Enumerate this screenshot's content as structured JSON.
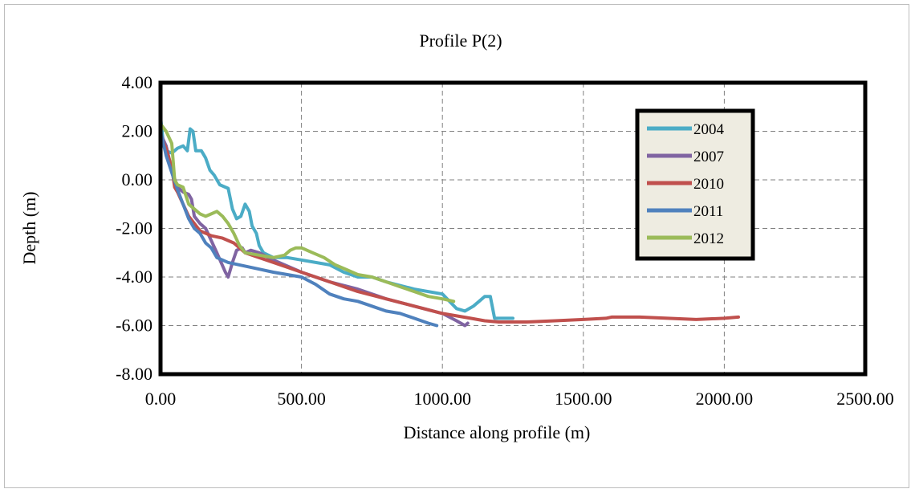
{
  "chart_data": {
    "type": "line",
    "title": "Profile P(2)",
    "xlabel": "Distance along profile (m)",
    "ylabel": "Depth (m)",
    "xlim": [
      0,
      2500
    ],
    "ylim": [
      -8,
      4
    ],
    "x_ticks": [
      0,
      500,
      1000,
      1500,
      2000,
      2500
    ],
    "y_ticks": [
      4,
      2,
      0,
      -2,
      -4,
      -6,
      -8
    ],
    "x_tick_labels": [
      "0.00",
      "500.00",
      "1000.00",
      "1500.00",
      "2000.00",
      "2500.00"
    ],
    "y_tick_labels": [
      "4.00",
      "2.00",
      "0.00",
      "-2.00",
      "-4.00",
      "-6.00",
      "-8.00"
    ],
    "grid": true,
    "legend_position": "top-right",
    "series": [
      {
        "name": "2004",
        "color": "#4bacc6",
        "points": [
          [
            0,
            2.6
          ],
          [
            10,
            1.5
          ],
          [
            20,
            1.2
          ],
          [
            40,
            1.1
          ],
          [
            60,
            1.3
          ],
          [
            80,
            1.4
          ],
          [
            95,
            1.2
          ],
          [
            105,
            2.1
          ],
          [
            115,
            2.0
          ],
          [
            125,
            1.2
          ],
          [
            145,
            1.2
          ],
          [
            160,
            0.9
          ],
          [
            175,
            0.4
          ],
          [
            190,
            0.2
          ],
          [
            210,
            -0.2
          ],
          [
            230,
            -0.3
          ],
          [
            240,
            -0.35
          ],
          [
            255,
            -1.2
          ],
          [
            270,
            -1.6
          ],
          [
            285,
            -1.5
          ],
          [
            300,
            -1.0
          ],
          [
            315,
            -1.3
          ],
          [
            325,
            -1.9
          ],
          [
            340,
            -2.2
          ],
          [
            350,
            -2.7
          ],
          [
            365,
            -3.0
          ],
          [
            400,
            -3.2
          ],
          [
            450,
            -3.2
          ],
          [
            500,
            -3.3
          ],
          [
            600,
            -3.5
          ],
          [
            650,
            -3.8
          ],
          [
            700,
            -4.0
          ],
          [
            750,
            -4.0
          ],
          [
            800,
            -4.2
          ],
          [
            900,
            -4.5
          ],
          [
            1000,
            -4.7
          ],
          [
            1050,
            -5.3
          ],
          [
            1080,
            -5.4
          ],
          [
            1110,
            -5.2
          ],
          [
            1130,
            -5.0
          ],
          [
            1150,
            -4.8
          ],
          [
            1170,
            -4.8
          ],
          [
            1185,
            -5.7
          ],
          [
            1220,
            -5.7
          ],
          [
            1250,
            -5.7
          ]
        ]
      },
      {
        "name": "2007",
        "color": "#8064a2",
        "points": [
          [
            0,
            1.9
          ],
          [
            20,
            1.4
          ],
          [
            40,
            0.4
          ],
          [
            60,
            -0.3
          ],
          [
            80,
            -0.5
          ],
          [
            100,
            -0.6
          ],
          [
            110,
            -0.8
          ],
          [
            120,
            -1.5
          ],
          [
            140,
            -1.8
          ],
          [
            160,
            -2.0
          ],
          [
            180,
            -2.5
          ],
          [
            200,
            -3.0
          ],
          [
            215,
            -3.4
          ],
          [
            230,
            -3.8
          ],
          [
            240,
            -4.0
          ],
          [
            255,
            -3.4
          ],
          [
            270,
            -2.9
          ],
          [
            290,
            -2.8
          ],
          [
            300,
            -3.0
          ],
          [
            320,
            -2.9
          ],
          [
            350,
            -3.0
          ],
          [
            400,
            -3.3
          ],
          [
            500,
            -3.8
          ],
          [
            600,
            -4.2
          ],
          [
            700,
            -4.5
          ],
          [
            800,
            -4.9
          ],
          [
            900,
            -5.2
          ],
          [
            1000,
            -5.5
          ],
          [
            1050,
            -5.8
          ],
          [
            1080,
            -6.0
          ],
          [
            1090,
            -5.9
          ]
        ]
      },
      {
        "name": "2010",
        "color": "#c0504d",
        "points": [
          [
            0,
            1.8
          ],
          [
            20,
            1.3
          ],
          [
            40,
            0.5
          ],
          [
            50,
            -0.3
          ],
          [
            60,
            -0.5
          ],
          [
            80,
            -1.0
          ],
          [
            100,
            -1.5
          ],
          [
            120,
            -1.8
          ],
          [
            140,
            -2.1
          ],
          [
            180,
            -2.3
          ],
          [
            220,
            -2.4
          ],
          [
            260,
            -2.6
          ],
          [
            300,
            -3.0
          ],
          [
            350,
            -3.2
          ],
          [
            400,
            -3.4
          ],
          [
            450,
            -3.6
          ],
          [
            500,
            -3.8
          ],
          [
            600,
            -4.2
          ],
          [
            700,
            -4.6
          ],
          [
            800,
            -4.9
          ],
          [
            900,
            -5.2
          ],
          [
            1000,
            -5.5
          ],
          [
            1050,
            -5.6
          ],
          [
            1100,
            -5.7
          ],
          [
            1150,
            -5.8
          ],
          [
            1200,
            -5.85
          ],
          [
            1300,
            -5.85
          ],
          [
            1400,
            -5.8
          ],
          [
            1500,
            -5.75
          ],
          [
            1580,
            -5.7
          ],
          [
            1600,
            -5.65
          ],
          [
            1700,
            -5.65
          ],
          [
            1800,
            -5.7
          ],
          [
            1900,
            -5.75
          ],
          [
            2000,
            -5.7
          ],
          [
            2050,
            -5.65
          ]
        ]
      },
      {
        "name": "2011",
        "color": "#4f81bd",
        "points": [
          [
            0,
            2.0
          ],
          [
            10,
            1.5
          ],
          [
            20,
            1.0
          ],
          [
            40,
            0.3
          ],
          [
            60,
            -0.4
          ],
          [
            80,
            -1.0
          ],
          [
            100,
            -1.6
          ],
          [
            120,
            -2.0
          ],
          [
            140,
            -2.2
          ],
          [
            160,
            -2.6
          ],
          [
            180,
            -2.8
          ],
          [
            200,
            -3.2
          ],
          [
            240,
            -3.4
          ],
          [
            280,
            -3.5
          ],
          [
            320,
            -3.6
          ],
          [
            360,
            -3.7
          ],
          [
            400,
            -3.8
          ],
          [
            450,
            -3.9
          ],
          [
            500,
            -4.0
          ],
          [
            550,
            -4.3
          ],
          [
            600,
            -4.7
          ],
          [
            650,
            -4.9
          ],
          [
            700,
            -5.0
          ],
          [
            750,
            -5.2
          ],
          [
            800,
            -5.4
          ],
          [
            850,
            -5.5
          ],
          [
            900,
            -5.7
          ],
          [
            950,
            -5.9
          ],
          [
            980,
            -6.0
          ]
        ]
      },
      {
        "name": "2012",
        "color": "#9bbb59",
        "points": [
          [
            0,
            2.3
          ],
          [
            20,
            2.0
          ],
          [
            40,
            1.5
          ],
          [
            50,
            0.0
          ],
          [
            60,
            -0.2
          ],
          [
            80,
            -0.3
          ],
          [
            100,
            -1.0
          ],
          [
            120,
            -1.2
          ],
          [
            140,
            -1.4
          ],
          [
            160,
            -1.5
          ],
          [
            180,
            -1.4
          ],
          [
            200,
            -1.3
          ],
          [
            220,
            -1.5
          ],
          [
            240,
            -1.8
          ],
          [
            260,
            -2.2
          ],
          [
            280,
            -2.7
          ],
          [
            300,
            -3.0
          ],
          [
            350,
            -3.1
          ],
          [
            400,
            -3.2
          ],
          [
            440,
            -3.1
          ],
          [
            460,
            -2.9
          ],
          [
            480,
            -2.8
          ],
          [
            500,
            -2.8
          ],
          [
            540,
            -3.0
          ],
          [
            580,
            -3.2
          ],
          [
            620,
            -3.5
          ],
          [
            660,
            -3.7
          ],
          [
            700,
            -3.9
          ],
          [
            750,
            -4.0
          ],
          [
            800,
            -4.2
          ],
          [
            850,
            -4.4
          ],
          [
            900,
            -4.6
          ],
          [
            950,
            -4.8
          ],
          [
            1000,
            -4.9
          ],
          [
            1040,
            -5.0
          ]
        ]
      }
    ]
  }
}
